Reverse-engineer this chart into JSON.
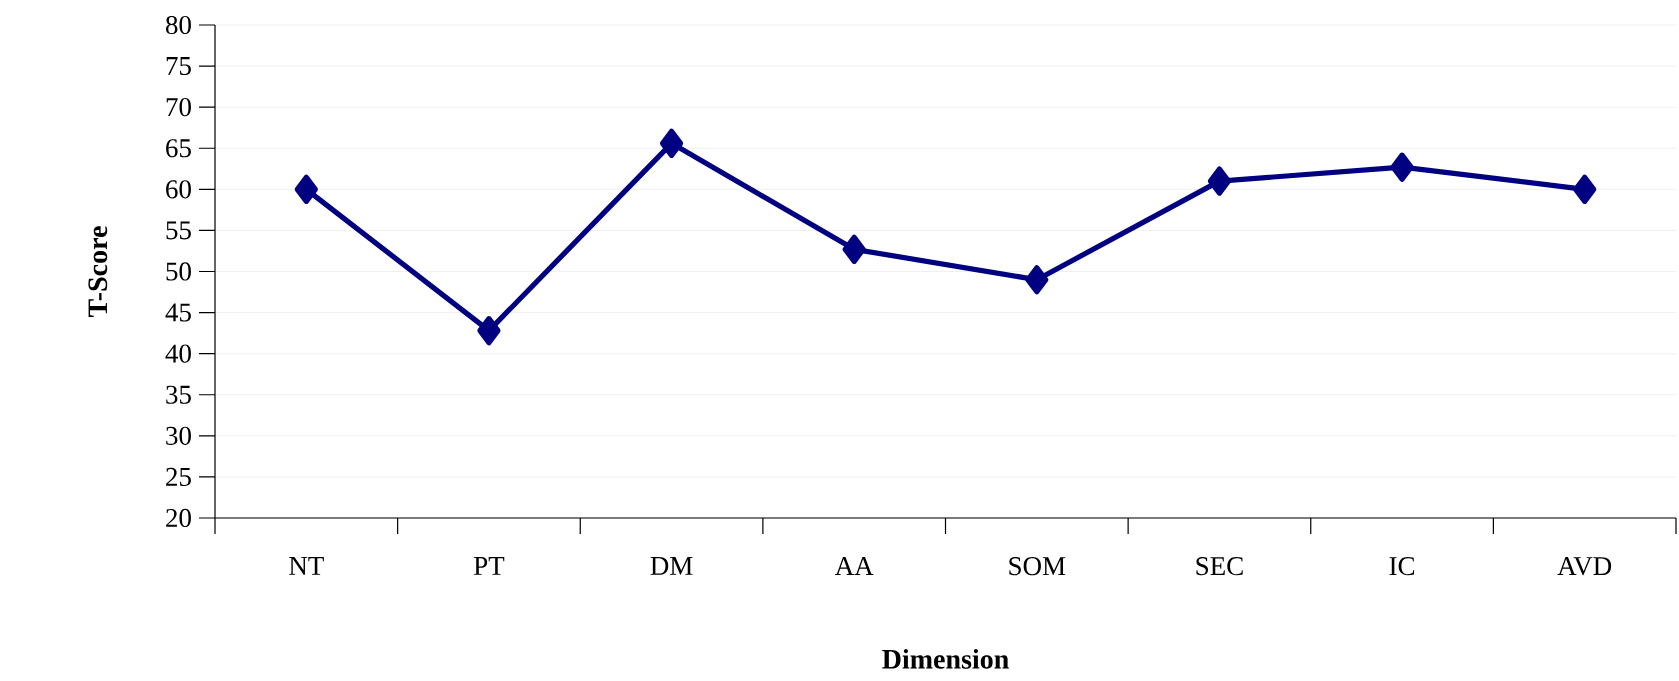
{
  "chart_data": {
    "type": "line",
    "xlabel": "Dimension",
    "ylabel": "T-Score",
    "categories": [
      "NT",
      "PT",
      "DM",
      "AA",
      "SOM",
      "SEC",
      "IC",
      "AVD"
    ],
    "series": [
      {
        "color": "#000080",
        "values": [
          60.0,
          42.8,
          65.6,
          52.7,
          49.0,
          61.0,
          62.7,
          60.0
        ]
      }
    ],
    "ylim": [
      20,
      80
    ],
    "yticks": [
      20,
      25,
      30,
      35,
      40,
      45,
      50,
      55,
      60,
      65,
      70,
      75,
      80
    ],
    "grid": "y",
    "marker": "diamond",
    "line_style": "solid",
    "legend": false
  }
}
